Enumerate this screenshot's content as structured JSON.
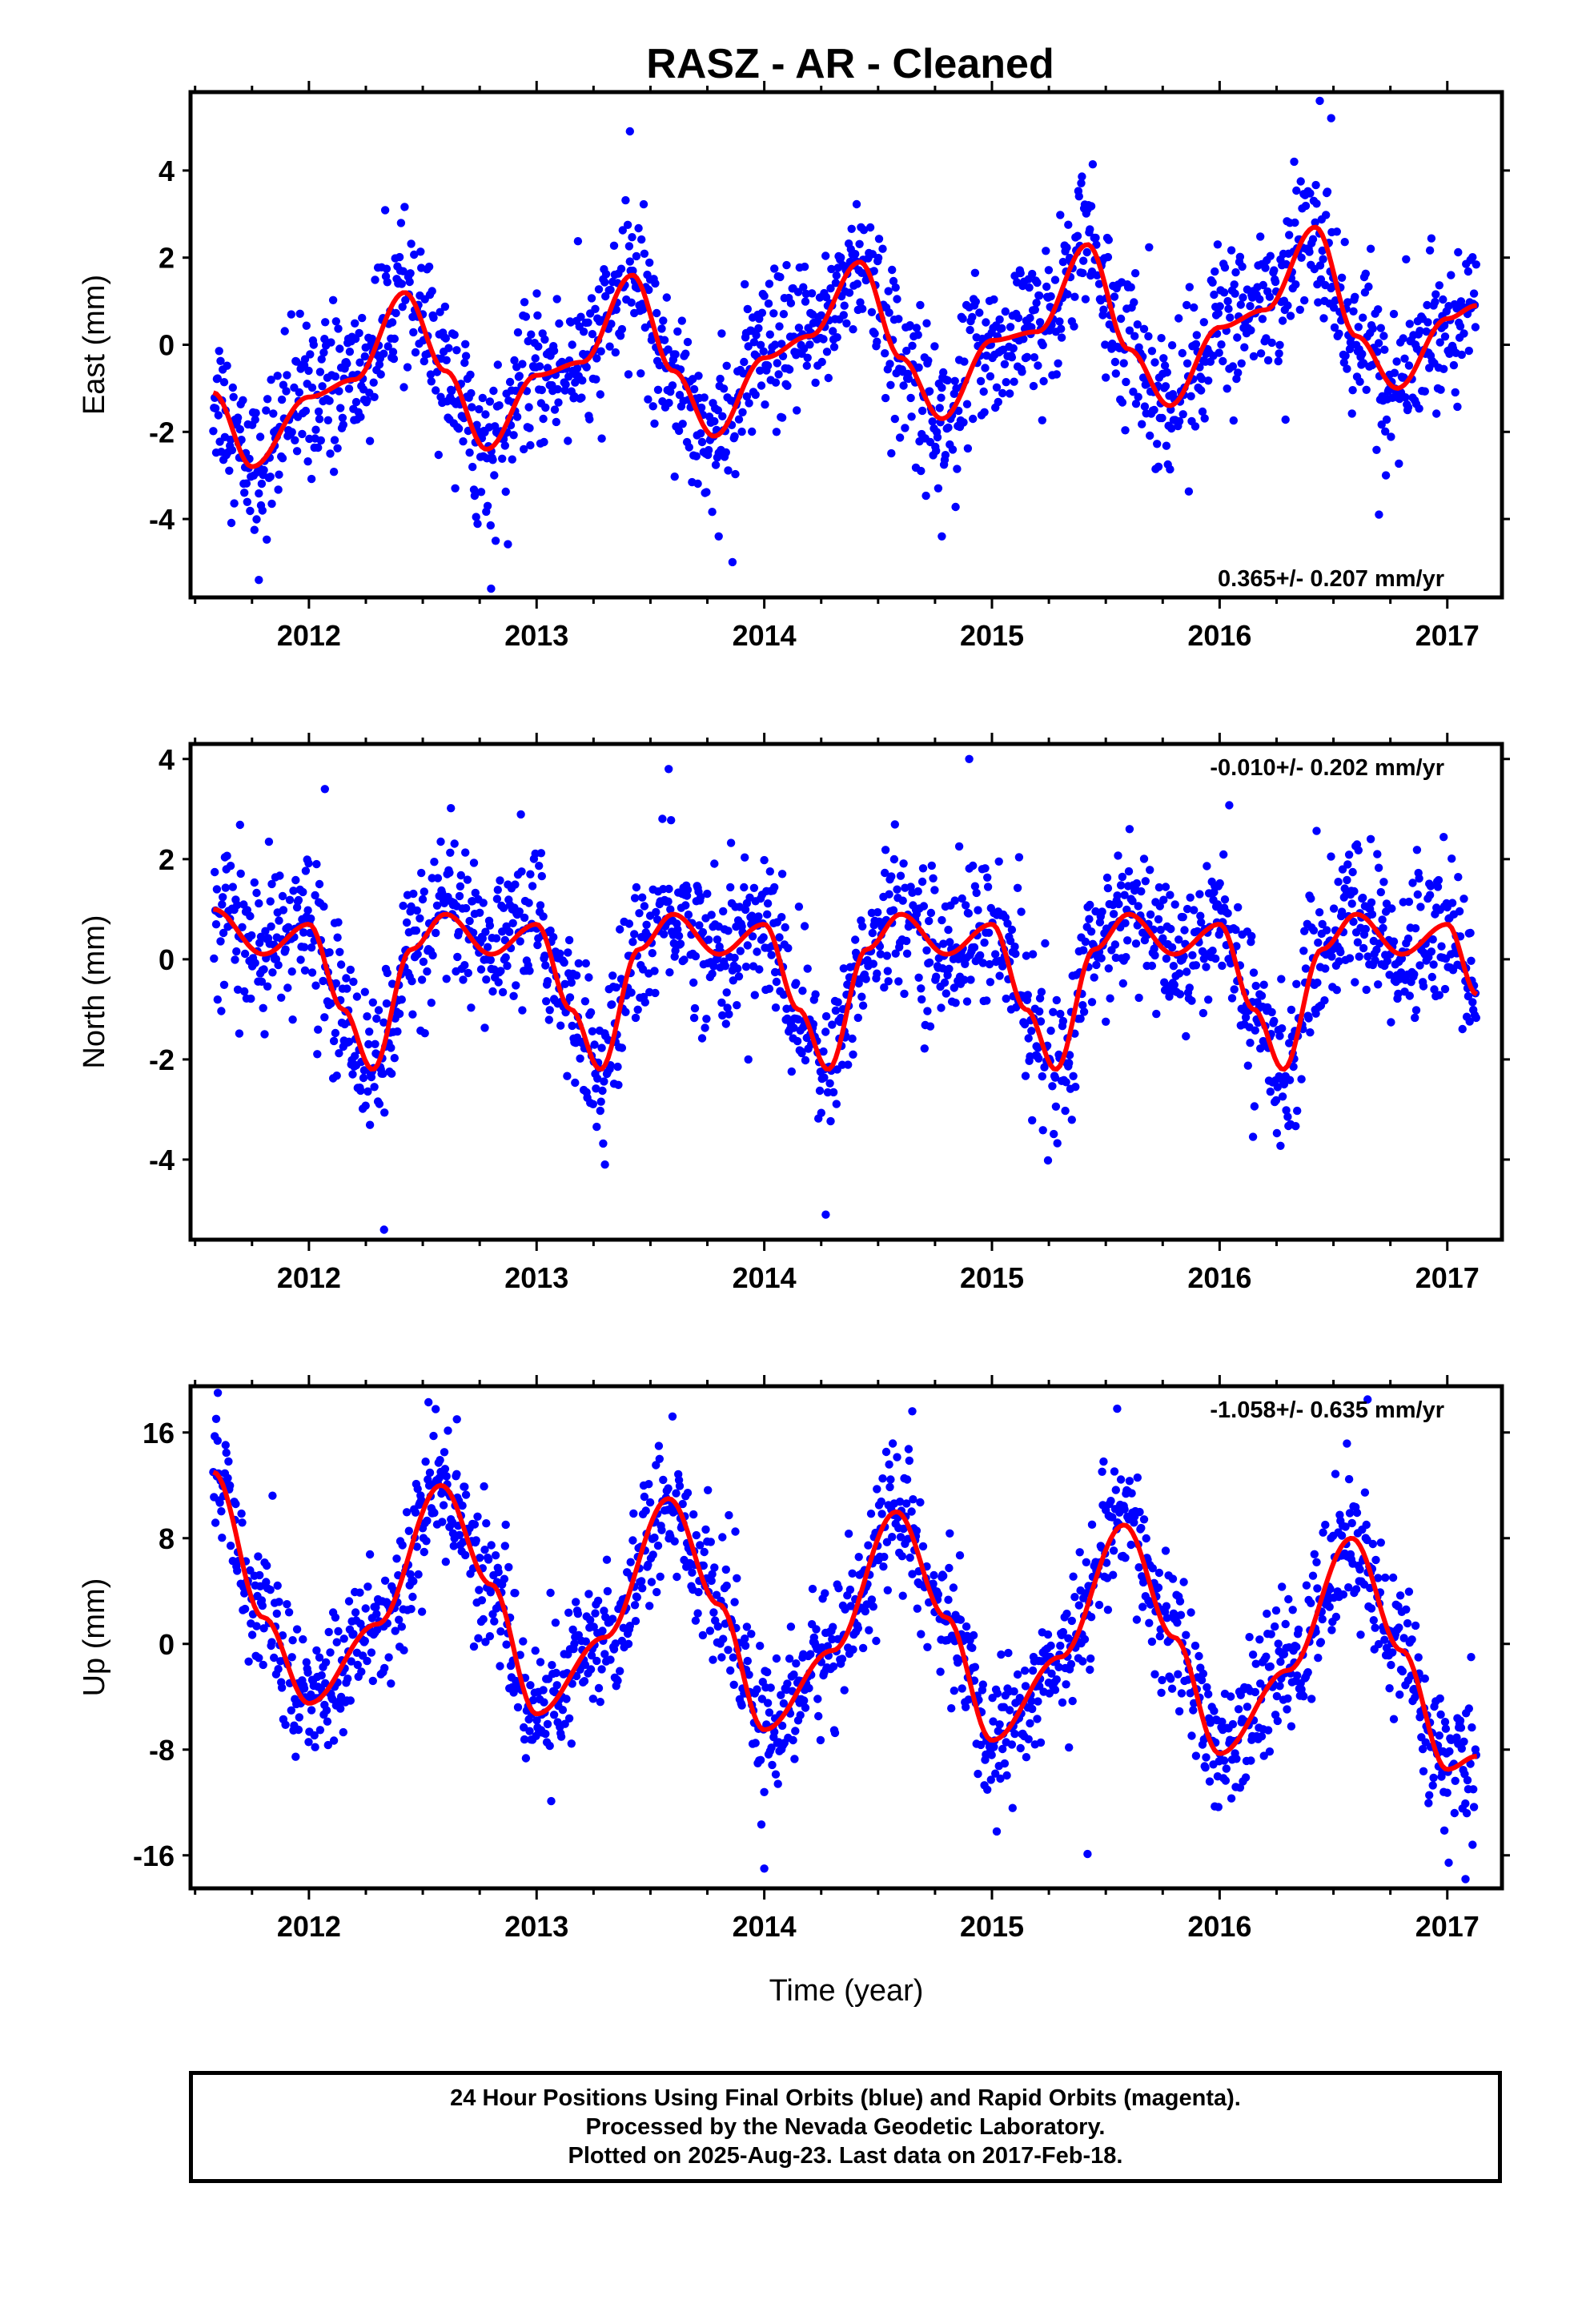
{
  "title": "RASZ  - AR - Cleaned",
  "colors": {
    "points": "#0000ff",
    "fit": "#ff0000",
    "frame": "#000000"
  },
  "caption": [
    "24 Hour Positions Using Final Orbits (blue) and Rapid Orbits (magenta).",
    "Processed by the Nevada Geodetic Laboratory.",
    "Plotted on 2025-Aug-23. Last data on 2017-Feb-18."
  ],
  "chart_data": [
    {
      "type": "scatter",
      "ylabel": "East (mm)",
      "xlabel": "",
      "rate_text": "0.365+/- 0.207 mm/yr",
      "rate_position": "bottom-right",
      "xlim": [
        2011.48,
        2017.24
      ],
      "ylim": [
        -5.8,
        5.8
      ],
      "xticks": [
        2012,
        2013,
        2014,
        2015,
        2016,
        2017
      ],
      "yticks": [
        -4,
        -2,
        0,
        2,
        4
      ],
      "data_start": 2011.58,
      "data_end": 2017.13,
      "fit": {
        "x": [
          2011.58,
          2011.75,
          2012.0,
          2012.2,
          2012.42,
          2012.6,
          2012.78,
          2013.0,
          2013.2,
          2013.42,
          2013.6,
          2013.78,
          2014.0,
          2014.2,
          2014.42,
          2014.6,
          2014.78,
          2015.0,
          2015.2,
          2015.42,
          2015.6,
          2015.78,
          2016.0,
          2016.2,
          2016.42,
          2016.6,
          2016.78,
          2017.0,
          2017.13
        ],
        "y": [
          -1.1,
          -2.8,
          -1.2,
          -0.8,
          1.2,
          -0.6,
          -2.4,
          -0.7,
          -0.4,
          1.6,
          -0.6,
          -2.1,
          -0.3,
          0.2,
          1.9,
          -0.3,
          -1.7,
          0.1,
          0.3,
          2.3,
          -0.1,
          -1.4,
          0.4,
          0.8,
          2.7,
          0.2,
          -1.0,
          0.6,
          0.9
        ]
      },
      "scatter": {
        "sd": 0.85,
        "outliers": [
          {
            "x": 2013.41,
            "y": 4.9
          },
          {
            "x": 2016.44,
            "y": 5.6
          },
          {
            "x": 2016.49,
            "y": 5.2
          },
          {
            "x": 2012.8,
            "y": -5.6
          },
          {
            "x": 2011.78,
            "y": -5.4
          },
          {
            "x": 2014.78,
            "y": -4.4
          },
          {
            "x": 2016.7,
            "y": -3.9
          },
          {
            "x": 2013.8,
            "y": -4.4
          }
        ]
      }
    },
    {
      "type": "scatter",
      "ylabel": "North (mm)",
      "xlabel": "",
      "rate_text": "-0.010+/- 0.202 mm/yr",
      "rate_position": "top-right",
      "xlim": [
        2011.48,
        2017.24
      ],
      "ylim": [
        -5.6,
        4.3
      ],
      "xticks": [
        2012,
        2013,
        2014,
        2015,
        2016,
        2017
      ],
      "yticks": [
        -4,
        -2,
        0,
        2,
        4
      ],
      "data_start": 2011.58,
      "data_end": 2017.13,
      "fit": {
        "x": [
          2011.58,
          2011.8,
          2012.0,
          2012.15,
          2012.28,
          2012.45,
          2012.6,
          2012.8,
          2013.0,
          2013.15,
          2013.28,
          2013.45,
          2013.6,
          2013.8,
          2014.0,
          2014.15,
          2014.28,
          2014.45,
          2014.6,
          2014.8,
          2015.0,
          2015.15,
          2015.28,
          2015.45,
          2015.6,
          2015.8,
          2016.0,
          2016.15,
          2016.28,
          2016.45,
          2016.6,
          2016.8,
          2017.0,
          2017.13
        ],
        "y": [
          1.0,
          0.1,
          0.7,
          -1.0,
          -2.2,
          0.2,
          0.9,
          0.1,
          0.7,
          -1.0,
          -2.2,
          0.2,
          0.9,
          0.1,
          0.7,
          -1.0,
          -2.2,
          0.2,
          0.9,
          0.1,
          0.7,
          -1.0,
          -2.2,
          0.2,
          0.9,
          0.1,
          0.7,
          -1.0,
          -2.2,
          0.2,
          0.9,
          0.1,
          0.7,
          -0.7
        ]
      },
      "scatter": {
        "sd": 0.75,
        "outliers": [
          {
            "x": 2013.58,
            "y": 3.8
          },
          {
            "x": 2014.9,
            "y": 4.0
          },
          {
            "x": 2012.33,
            "y": -5.4
          },
          {
            "x": 2014.27,
            "y": -5.1
          },
          {
            "x": 2013.3,
            "y": -4.1
          },
          {
            "x": 2012.07,
            "y": 3.4
          }
        ]
      }
    },
    {
      "type": "scatter",
      "ylabel": "Up (mm)",
      "xlabel": "Time (year)",
      "rate_text": "-1.058+/- 0.635 mm/yr",
      "rate_position": "top-right",
      "xlim": [
        2011.48,
        2017.24
      ],
      "ylim": [
        -18.5,
        19.5
      ],
      "xticks": [
        2012,
        2013,
        2014,
        2015,
        2016,
        2017
      ],
      "yticks": [
        -16,
        -8,
        0,
        8,
        16
      ],
      "data_start": 2011.58,
      "data_end": 2017.13,
      "fit": {
        "x": [
          2011.58,
          2011.8,
          2012.0,
          2012.3,
          2012.58,
          2012.8,
          2013.0,
          2013.3,
          2013.58,
          2013.8,
          2014.0,
          2014.3,
          2014.58,
          2014.8,
          2015.0,
          2015.3,
          2015.58,
          2015.8,
          2016.0,
          2016.3,
          2016.58,
          2016.8,
          2017.0,
          2017.13
        ],
        "y": [
          13.0,
          2.0,
          -4.5,
          1.5,
          12.0,
          4.5,
          -5.3,
          0.5,
          11.0,
          3.0,
          -6.5,
          -0.5,
          10.0,
          2.0,
          -7.3,
          -1.0,
          9.0,
          0.5,
          -8.3,
          -2.0,
          8.0,
          -0.5,
          -9.5,
          -8.5
        ]
      },
      "scatter": {
        "sd": 2.6,
        "outliers": [
          {
            "x": 2011.6,
            "y": 19.0
          },
          {
            "x": 2014.0,
            "y": -17.0
          },
          {
            "x": 2017.08,
            "y": -17.8
          },
          {
            "x": 2016.65,
            "y": 18.5
          },
          {
            "x": 2015.55,
            "y": 17.8
          },
          {
            "x": 2014.65,
            "y": 17.6
          },
          {
            "x": 2012.65,
            "y": 17.0
          },
          {
            "x": 2015.42,
            "y": -15.9
          }
        ]
      }
    }
  ]
}
